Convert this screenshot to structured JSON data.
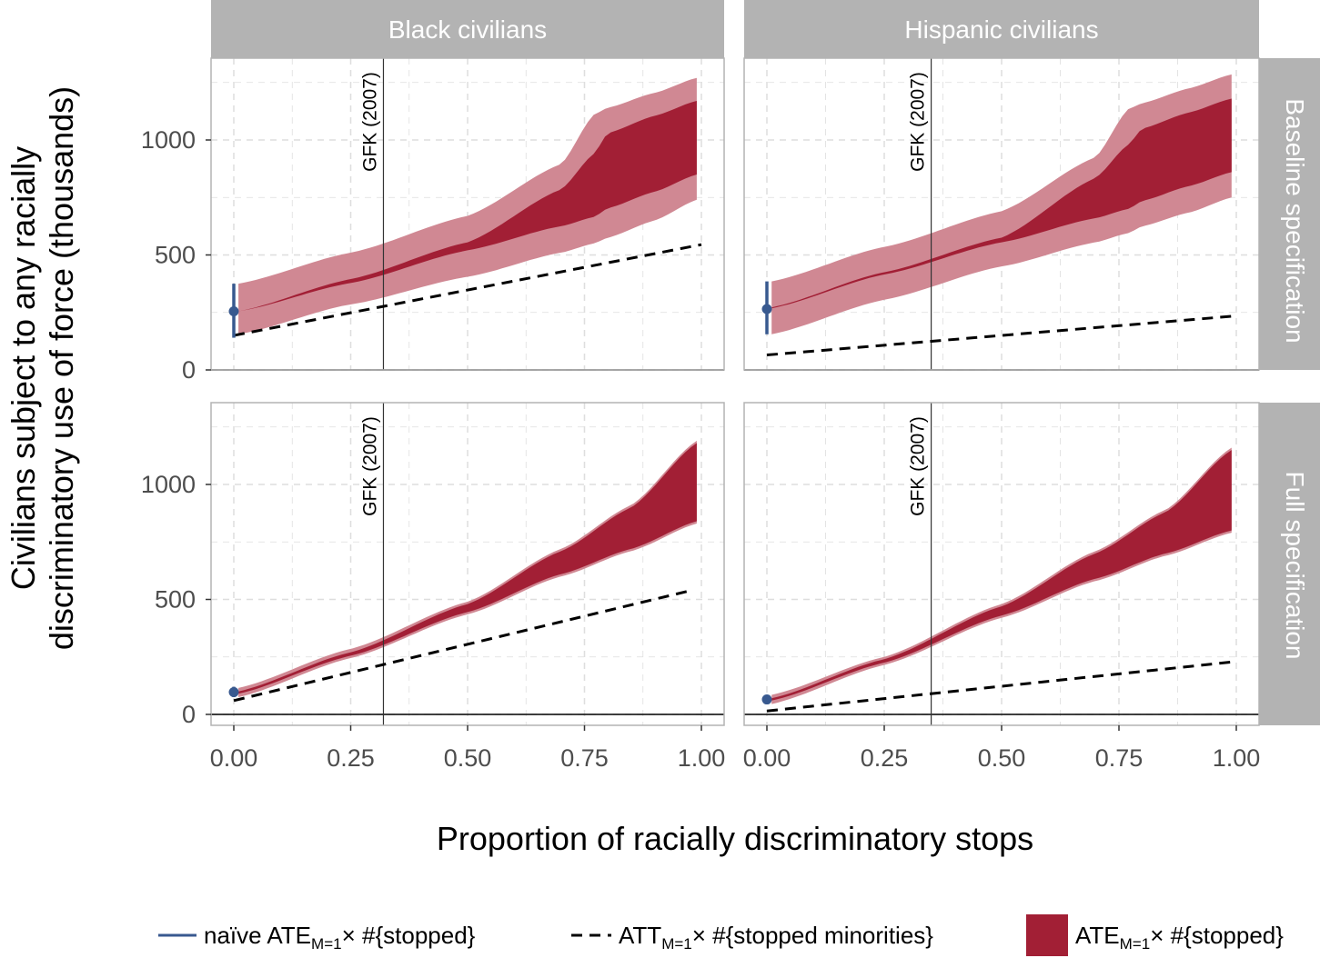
{
  "colors": {
    "band_outer": "#d08893",
    "band_inner": "#a21f35",
    "naive": "#38598f",
    "strip_bg": "#b3b3b3",
    "grid": "#dedede",
    "panel_border": "#b3b3b3"
  },
  "chart_data": {
    "type": "area",
    "xlabel": "Proportion of racially discriminatory stops",
    "ylabel_line1": "Civilians subject to any racially",
    "ylabel_line2": "discriminatory use of force (thousands)",
    "xlim": [
      -0.05,
      1.05
    ],
    "ylim": [
      -75,
      1350
    ],
    "x_ticks": [
      0,
      0.25,
      0.5,
      0.75,
      1.0
    ],
    "x_tick_labels": [
      "0.00",
      "0.25",
      "0.50",
      "0.75",
      "1.00"
    ],
    "y_ticks": [
      0,
      500,
      1000
    ],
    "y_tick_labels": [
      "0",
      "500",
      "1000"
    ],
    "columns": [
      "Black civilians",
      "Hispanic civilians"
    ],
    "rows": [
      "Baseline specification",
      "Full specification"
    ],
    "legend": {
      "naive_pre": "naïve ATE",
      "naive_sub": "M=1",
      "naive_post": "× #{stopped}",
      "att_pre": "ATT",
      "att_sub": "M=1",
      "att_post": "× #{stopped minorities}",
      "ate_pre": "ATE",
      "ate_sub": "M=1",
      "ate_post": "× #{stopped}"
    },
    "panels": [
      {
        "column": "Black civilians",
        "row": "Baseline specification",
        "gfk_x": 0.32,
        "gfk_label": "GFK (2007)",
        "naive": {
          "x": 0,
          "estimate": 255,
          "low": 140,
          "high": 375
        },
        "att_line": {
          "x": [
            0,
            1
          ],
          "y": [
            150,
            545
          ]
        },
        "band_x": [
          0.01,
          0.25,
          0.5,
          0.7,
          0.77,
          0.8,
          0.9,
          0.99
        ],
        "inner_lower": [
          255,
          378,
          520,
          625,
          665,
          703,
          775,
          850
        ],
        "inner_upper": [
          255,
          395,
          555,
          785,
          940,
          1030,
          1105,
          1170
        ],
        "outer_lower": [
          155,
          285,
          405,
          510,
          550,
          575,
          650,
          740
        ],
        "outer_upper": [
          375,
          510,
          670,
          895,
          1110,
          1140,
          1205,
          1270
        ]
      },
      {
        "column": "Hispanic civilians",
        "row": "Baseline specification",
        "gfk_x": 0.35,
        "gfk_label": "GFK (2007)",
        "naive": {
          "x": 0,
          "estimate": 265,
          "low": 155,
          "high": 385
        },
        "att_line": {
          "x": [
            0,
            1
          ],
          "y": [
            65,
            235
          ]
        },
        "band_x": [
          0.01,
          0.25,
          0.5,
          0.7,
          0.77,
          0.8,
          0.9,
          0.99
        ],
        "inner_lower": [
          268,
          415,
          555,
          660,
          700,
          735,
          800,
          860
        ],
        "inner_upper": [
          272,
          425,
          575,
          835,
          980,
          1050,
          1120,
          1180
        ],
        "outer_lower": [
          155,
          305,
          450,
          555,
          595,
          625,
          685,
          750
        ],
        "outer_upper": [
          385,
          535,
          690,
          925,
          1135,
          1160,
          1225,
          1285
        ]
      },
      {
        "column": "Black civilians",
        "row": "Full specification",
        "gfk_x": 0.32,
        "gfk_label": "GFK (2007)",
        "naive": {
          "x": 0,
          "estimate": 97,
          "low": 75,
          "high": 120
        },
        "att_line": {
          "x": [
            0,
            0.98
          ],
          "y": [
            60,
            540
          ]
        },
        "band_x": [
          0.01,
          0.25,
          0.5,
          0.7,
          0.85,
          0.99
        ],
        "inner_lower": [
          90,
          255,
          445,
          610,
          720,
          840
        ],
        "inner_upper": [
          100,
          270,
          480,
          710,
          900,
          1180
        ],
        "outer_lower": [
          75,
          245,
          435,
          600,
          710,
          830
        ],
        "outer_upper": [
          115,
          285,
          490,
          720,
          910,
          1190
        ]
      },
      {
        "column": "Hispanic civilians",
        "row": "Full specification",
        "gfk_x": 0.35,
        "gfk_label": "GFK (2007)",
        "naive": {
          "x": 0,
          "estimate": 65,
          "low": 45,
          "high": 85
        },
        "att_line": {
          "x": [
            0,
            1
          ],
          "y": [
            15,
            230
          ]
        },
        "band_x": [
          0.01,
          0.25,
          0.5,
          0.7,
          0.85,
          0.99
        ],
        "inner_lower": [
          60,
          225,
          430,
          590,
          700,
          800
        ],
        "inner_upper": [
          70,
          240,
          470,
          700,
          880,
          1150
        ],
        "outer_lower": [
          45,
          215,
          420,
          580,
          690,
          790
        ],
        "outer_upper": [
          85,
          250,
          480,
          710,
          890,
          1160
        ]
      }
    ]
  }
}
